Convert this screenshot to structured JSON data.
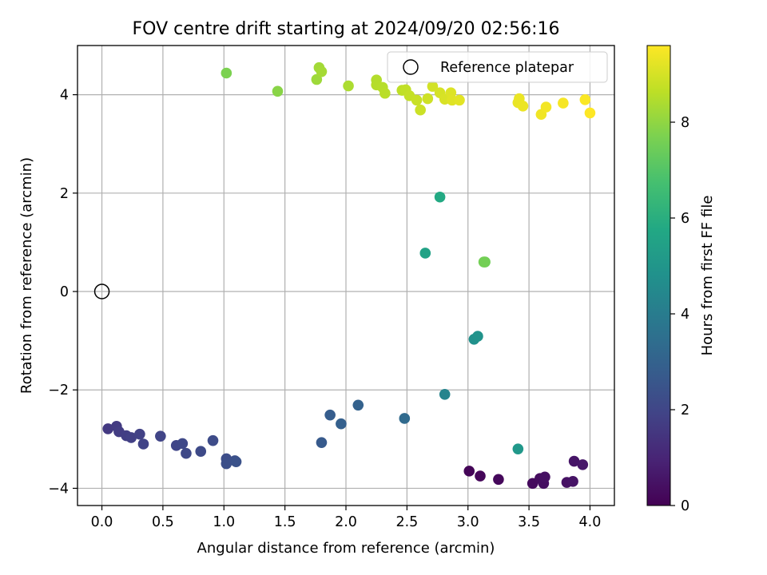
{
  "chart_data": {
    "type": "scatter",
    "title": "FOV centre drift starting at 2024/09/20 02:56:16",
    "xlabel": "Angular distance from reference (arcmin)",
    "ylabel": "Rotation from reference (arcmin)",
    "xlim": [
      -0.2,
      4.2
    ],
    "ylim": [
      -4.35,
      5.0
    ],
    "xticks": [
      0.0,
      0.5,
      1.0,
      1.5,
      2.0,
      2.5,
      3.0,
      3.5,
      4.0
    ],
    "xtick_labels": [
      "0.0",
      "0.5",
      "1.0",
      "1.5",
      "2.0",
      "2.5",
      "3.0",
      "3.5",
      "4.0"
    ],
    "yticks": [
      -4,
      -2,
      0,
      2,
      4
    ],
    "ytick_labels": [
      "−4",
      "−2",
      "0",
      "2",
      "4"
    ],
    "grid": true,
    "legend": {
      "placement": "top-right",
      "entries": [
        "Reference platepar"
      ]
    },
    "reference_point": {
      "x": 0.0,
      "y": 0.0
    },
    "colorbar": {
      "label": "Hours from first FF file",
      "colormap": "viridis",
      "range": [
        0,
        9.6
      ],
      "ticks": [
        0,
        2,
        4,
        6,
        8
      ],
      "tick_labels": [
        "0",
        "2",
        "4",
        "6",
        "8"
      ]
    },
    "points": [
      {
        "x": 3.01,
        "y": -3.65,
        "h": 0.1
      },
      {
        "x": 3.1,
        "y": -3.75,
        "h": 0.15
      },
      {
        "x": 3.25,
        "y": -3.82,
        "h": 0.2
      },
      {
        "x": 3.53,
        "y": -3.9,
        "h": 0.25
      },
      {
        "x": 3.59,
        "y": -3.8,
        "h": 0.3
      },
      {
        "x": 3.62,
        "y": -3.9,
        "h": 0.35
      },
      {
        "x": 3.63,
        "y": -3.77,
        "h": 0.4
      },
      {
        "x": 3.81,
        "y": -3.88,
        "h": 0.45
      },
      {
        "x": 3.86,
        "y": -3.86,
        "h": 0.5
      },
      {
        "x": 3.87,
        "y": -3.45,
        "h": 0.55
      },
      {
        "x": 3.94,
        "y": -3.52,
        "h": 0.6
      },
      {
        "x": 0.05,
        "y": -2.79,
        "h": 1.6
      },
      {
        "x": 0.12,
        "y": -2.74,
        "h": 1.65
      },
      {
        "x": 0.14,
        "y": -2.85,
        "h": 1.7
      },
      {
        "x": 0.2,
        "y": -2.93,
        "h": 1.75
      },
      {
        "x": 0.24,
        "y": -2.97,
        "h": 1.8
      },
      {
        "x": 0.31,
        "y": -2.9,
        "h": 1.85
      },
      {
        "x": 0.34,
        "y": -3.1,
        "h": 1.9
      },
      {
        "x": 0.48,
        "y": -2.94,
        "h": 1.95
      },
      {
        "x": 0.61,
        "y": -3.13,
        "h": 2.0
      },
      {
        "x": 0.66,
        "y": -3.09,
        "h": 2.05
      },
      {
        "x": 0.69,
        "y": -3.29,
        "h": 2.1
      },
      {
        "x": 0.81,
        "y": -3.25,
        "h": 2.15
      },
      {
        "x": 0.91,
        "y": -3.03,
        "h": 2.2
      },
      {
        "x": 1.02,
        "y": -3.4,
        "h": 2.25
      },
      {
        "x": 1.02,
        "y": -3.5,
        "h": 2.3
      },
      {
        "x": 1.09,
        "y": -3.44,
        "h": 2.35
      },
      {
        "x": 1.1,
        "y": -3.46,
        "h": 2.4
      },
      {
        "x": 1.8,
        "y": -3.07,
        "h": 2.7
      },
      {
        "x": 1.87,
        "y": -2.51,
        "h": 2.8
      },
      {
        "x": 1.96,
        "y": -2.69,
        "h": 2.9
      },
      {
        "x": 2.1,
        "y": -2.31,
        "h": 3.0
      },
      {
        "x": 2.48,
        "y": -2.58,
        "h": 3.3
      },
      {
        "x": 2.81,
        "y": -2.09,
        "h": 4.3
      },
      {
        "x": 3.05,
        "y": -0.97,
        "h": 4.8
      },
      {
        "x": 3.08,
        "y": -0.91,
        "h": 4.9
      },
      {
        "x": 3.41,
        "y": -3.2,
        "h": 5.1
      },
      {
        "x": 2.65,
        "y": 0.78,
        "h": 5.5
      },
      {
        "x": 2.77,
        "y": 1.92,
        "h": 5.8
      },
      {
        "x": 3.14,
        "y": 0.6,
        "h": 7.5
      },
      {
        "x": 3.13,
        "y": 0.6,
        "h": 7.55
      },
      {
        "x": 1.02,
        "y": 4.44,
        "h": 7.7
      },
      {
        "x": 1.44,
        "y": 4.07,
        "h": 7.9
      },
      {
        "x": 1.76,
        "y": 4.31,
        "h": 8.2
      },
      {
        "x": 1.78,
        "y": 4.55,
        "h": 8.25
      },
      {
        "x": 1.8,
        "y": 4.47,
        "h": 8.3
      },
      {
        "x": 2.02,
        "y": 4.18,
        "h": 8.4
      },
      {
        "x": 2.25,
        "y": 4.3,
        "h": 8.5
      },
      {
        "x": 2.25,
        "y": 4.2,
        "h": 8.52
      },
      {
        "x": 2.3,
        "y": 4.15,
        "h": 8.55
      },
      {
        "x": 2.32,
        "y": 4.03,
        "h": 8.6
      },
      {
        "x": 2.46,
        "y": 4.09,
        "h": 8.65
      },
      {
        "x": 2.49,
        "y": 4.1,
        "h": 8.7
      },
      {
        "x": 2.52,
        "y": 3.98,
        "h": 8.75
      },
      {
        "x": 2.58,
        "y": 3.89,
        "h": 8.8
      },
      {
        "x": 2.61,
        "y": 3.69,
        "h": 8.85
      },
      {
        "x": 2.67,
        "y": 3.92,
        "h": 8.9
      },
      {
        "x": 2.71,
        "y": 4.17,
        "h": 8.95
      },
      {
        "x": 2.77,
        "y": 4.04,
        "h": 9.0
      },
      {
        "x": 2.81,
        "y": 3.91,
        "h": 9.05
      },
      {
        "x": 2.86,
        "y": 4.04,
        "h": 9.1
      },
      {
        "x": 2.87,
        "y": 3.89,
        "h": 9.15
      },
      {
        "x": 2.93,
        "y": 3.89,
        "h": 9.2
      },
      {
        "x": 3.41,
        "y": 3.84,
        "h": 9.3
      },
      {
        "x": 3.42,
        "y": 3.92,
        "h": 9.32
      },
      {
        "x": 3.45,
        "y": 3.77,
        "h": 9.35
      },
      {
        "x": 3.6,
        "y": 3.6,
        "h": 9.4
      },
      {
        "x": 3.64,
        "y": 3.75,
        "h": 9.45
      },
      {
        "x": 3.78,
        "y": 3.83,
        "h": 9.5
      },
      {
        "x": 3.96,
        "y": 3.9,
        "h": 9.55
      },
      {
        "x": 4.0,
        "y": 3.63,
        "h": 9.6
      }
    ]
  }
}
